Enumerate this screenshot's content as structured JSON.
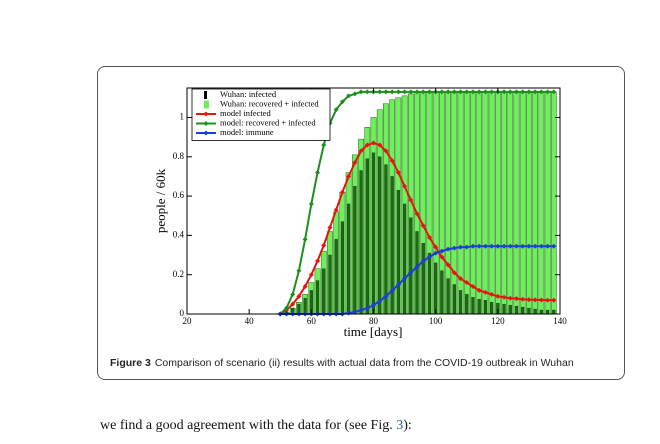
{
  "figure": {
    "label": "Figure 3",
    "caption": "Comparison of scenario (ii) results with actual data from the COVID-19 outbreak in Wuhan"
  },
  "body": {
    "text_before": "we find a good agreement with the data for (see Fig. ",
    "ref": "3",
    "text_after": "):"
  },
  "chart_data": {
    "type": "combo",
    "x_label": "time [days]",
    "y_label": "people / 60k",
    "xlim": [
      20,
      140
    ],
    "xticks": [
      20,
      40,
      60,
      80,
      100,
      120,
      140
    ],
    "ylim": [
      0,
      1.15
    ],
    "yticks": [
      0,
      0.2,
      0.4,
      0.6,
      0.8,
      1
    ],
    "legend": "upper left",
    "x": [
      50,
      52,
      54,
      56,
      58,
      60,
      62,
      64,
      66,
      68,
      70,
      72,
      74,
      76,
      78,
      80,
      82,
      84,
      86,
      88,
      90,
      92,
      94,
      96,
      98,
      100,
      102,
      104,
      106,
      108,
      110,
      112,
      114,
      116,
      118,
      120,
      122,
      124,
      126,
      128,
      130,
      132,
      134,
      136,
      138
    ],
    "series": [
      {
        "name": "Wuhan: infected",
        "type": "bar",
        "color": "#1d6a12",
        "legend_color": "#000000",
        "values": [
          0,
          0.01,
          0.03,
          0.05,
          0.08,
          0.12,
          0.17,
          0.23,
          0.3,
          0.38,
          0.47,
          0.56,
          0.65,
          0.73,
          0.79,
          0.82,
          0.8,
          0.76,
          0.7,
          0.63,
          0.56,
          0.49,
          0.42,
          0.36,
          0.31,
          0.26,
          0.22,
          0.18,
          0.15,
          0.12,
          0.1,
          0.085,
          0.075,
          0.07,
          0.06,
          0.055,
          0.05,
          0.045,
          0.04,
          0.035,
          0.03,
          0.025,
          0.02,
          0.02,
          0.02
        ]
      },
      {
        "name": "Wuhan: recovered + infected",
        "type": "bar",
        "color": "#6ef05a",
        "values": [
          0,
          0.01,
          0.03,
          0.06,
          0.1,
          0.16,
          0.23,
          0.32,
          0.42,
          0.52,
          0.62,
          0.72,
          0.81,
          0.89,
          0.95,
          1.0,
          1.04,
          1.07,
          1.09,
          1.1,
          1.11,
          1.12,
          1.13,
          1.13,
          1.13,
          1.13,
          1.13,
          1.13,
          1.13,
          1.13,
          1.13,
          1.13,
          1.13,
          1.13,
          1.13,
          1.13,
          1.13,
          1.13,
          1.13,
          1.13,
          1.13,
          1.13,
          1.13,
          1.13,
          1.13
        ]
      },
      {
        "name": "model infected",
        "type": "line",
        "color": "#e8140c",
        "values": [
          0,
          0.02,
          0.05,
          0.09,
          0.14,
          0.2,
          0.27,
          0.35,
          0.44,
          0.53,
          0.62,
          0.7,
          0.77,
          0.83,
          0.86,
          0.87,
          0.86,
          0.83,
          0.78,
          0.72,
          0.65,
          0.58,
          0.51,
          0.45,
          0.39,
          0.34,
          0.29,
          0.25,
          0.21,
          0.18,
          0.16,
          0.14,
          0.12,
          0.11,
          0.1,
          0.09,
          0.085,
          0.08,
          0.078,
          0.075,
          0.073,
          0.072,
          0.071,
          0.07,
          0.07
        ]
      },
      {
        "name": "model: recovered + infected",
        "type": "line",
        "color": "#1f8f1f",
        "values": [
          0,
          0.03,
          0.1,
          0.22,
          0.38,
          0.56,
          0.72,
          0.86,
          0.97,
          1.04,
          1.08,
          1.11,
          1.12,
          1.13,
          1.13,
          1.13,
          1.13,
          1.13,
          1.13,
          1.13,
          1.13,
          1.13,
          1.13,
          1.13,
          1.13,
          1.13,
          1.13,
          1.13,
          1.13,
          1.13,
          1.13,
          1.13,
          1.13,
          1.13,
          1.13,
          1.13,
          1.13,
          1.13,
          1.13,
          1.13,
          1.13,
          1.13,
          1.13,
          1.13,
          1.13
        ]
      },
      {
        "name": "model: immune",
        "type": "line",
        "color": "#1a3fd6",
        "values": [
          0,
          0,
          0,
          0,
          0,
          0,
          0,
          0,
          0,
          0,
          0,
          0.005,
          0.01,
          0.02,
          0.03,
          0.045,
          0.065,
          0.09,
          0.12,
          0.15,
          0.18,
          0.21,
          0.24,
          0.27,
          0.29,
          0.31,
          0.32,
          0.33,
          0.335,
          0.34,
          0.34,
          0.345,
          0.345,
          0.345,
          0.345,
          0.345,
          0.345,
          0.345,
          0.345,
          0.345,
          0.345,
          0.345,
          0.345,
          0.345,
          0.345
        ]
      }
    ]
  }
}
